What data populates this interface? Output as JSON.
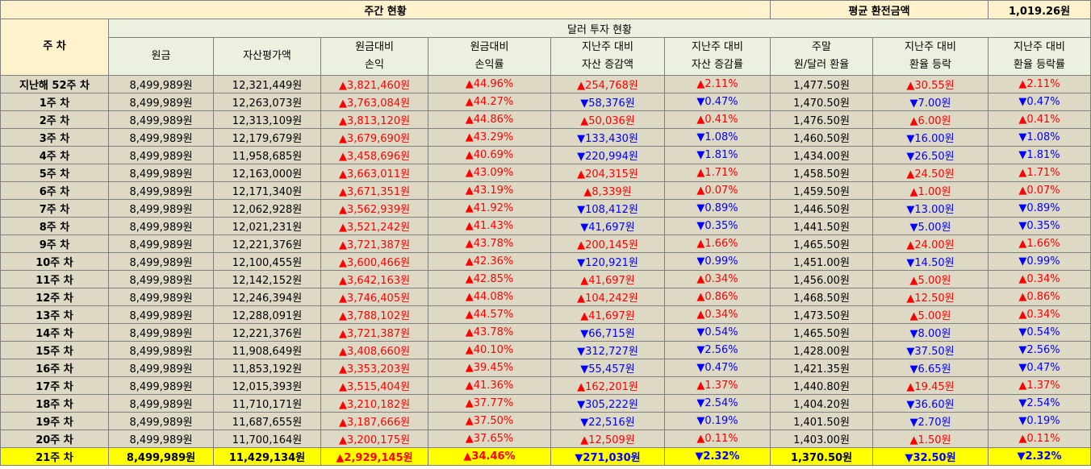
{
  "header": {
    "section_title": "주간 현황",
    "avg_label": "평균 환전금액",
    "avg_value": "1,019.26원",
    "week_col": "주 차",
    "subsection_title": "달러 투자 현황"
  },
  "columns": [
    {
      "l1": "원금",
      "l2": ""
    },
    {
      "l1": "자산평가액",
      "l2": ""
    },
    {
      "l1": "원금대비",
      "l2": "손익"
    },
    {
      "l1": "원금대비",
      "l2": "손익률"
    },
    {
      "l1": "지난주 대비",
      "l2": "자산 증감액"
    },
    {
      "l1": "지난주 대비",
      "l2": "자산 증감률"
    },
    {
      "l1": "주말",
      "l2": "원/달러 환율"
    },
    {
      "l1": "지난주 대비",
      "l2": "환율 등락"
    },
    {
      "l1": "지난주 대비",
      "l2": "환율 등락률"
    }
  ],
  "colors": {
    "up": "#ff0000",
    "down": "#0000ff",
    "highlight": "#ffff00",
    "header_bg": "#fff2cc",
    "row_bg": "#ddd9c4"
  },
  "rows": [
    {
      "week": "지난해 52주 차",
      "principal": "8,499,989원",
      "asset": "12,321,449원",
      "pl": "▲3,821,460원",
      "plr": "▲44.96%",
      "chg": "▲254,768원",
      "chgr": "▲2.11%",
      "fx": "1,477.50원",
      "fxchg": "▲30.55원",
      "fxr": "▲2.11%"
    },
    {
      "week": "1주 차",
      "principal": "8,499,989원",
      "asset": "12,263,073원",
      "pl": "▲3,763,084원",
      "plr": "▲44.27%",
      "chg": "▼58,376원",
      "chgr": "▼0.47%",
      "fx": "1,470.50원",
      "fxchg": "▼7.00원",
      "fxr": "▼0.47%"
    },
    {
      "week": "2주 차",
      "principal": "8,499,989원",
      "asset": "12,313,109원",
      "pl": "▲3,813,120원",
      "plr": "▲44.86%",
      "chg": "▲50,036원",
      "chgr": "▲0.41%",
      "fx": "1,476.50원",
      "fxchg": "▲6.00원",
      "fxr": "▲0.41%"
    },
    {
      "week": "3주 차",
      "principal": "8,499,989원",
      "asset": "12,179,679원",
      "pl": "▲3,679,690원",
      "plr": "▲43.29%",
      "chg": "▼133,430원",
      "chgr": "▼1.08%",
      "fx": "1,460.50원",
      "fxchg": "▼16.00원",
      "fxr": "▼1.08%"
    },
    {
      "week": "4주 차",
      "principal": "8,499,989원",
      "asset": "11,958,685원",
      "pl": "▲3,458,696원",
      "plr": "▲40.69%",
      "chg": "▼220,994원",
      "chgr": "▼1.81%",
      "fx": "1,434.00원",
      "fxchg": "▼26.50원",
      "fxr": "▼1.81%"
    },
    {
      "week": "5주 차",
      "principal": "8,499,989원",
      "asset": "12,163,000원",
      "pl": "▲3,663,011원",
      "plr": "▲43.09%",
      "chg": "▲204,315원",
      "chgr": "▲1.71%",
      "fx": "1,458.50원",
      "fxchg": "▲24.50원",
      "fxr": "▲1.71%"
    },
    {
      "week": "6주 차",
      "principal": "8,499,989원",
      "asset": "12,171,340원",
      "pl": "▲3,671,351원",
      "plr": "▲43.19%",
      "chg": "▲8,339원",
      "chgr": "▲0.07%",
      "fx": "1,459.50원",
      "fxchg": "▲1.00원",
      "fxr": "▲0.07%"
    },
    {
      "week": "7주 차",
      "principal": "8,499,989원",
      "asset": "12,062,928원",
      "pl": "▲3,562,939원",
      "plr": "▲41.92%",
      "chg": "▼108,412원",
      "chgr": "▼0.89%",
      "fx": "1,446.50원",
      "fxchg": "▼13.00원",
      "fxr": "▼0.89%"
    },
    {
      "week": "8주 차",
      "principal": "8,499,989원",
      "asset": "12,021,231원",
      "pl": "▲3,521,242원",
      "plr": "▲41.43%",
      "chg": "▼41,697원",
      "chgr": "▼0.35%",
      "fx": "1,441.50원",
      "fxchg": "▼5.00원",
      "fxr": "▼0.35%"
    },
    {
      "week": "9주 차",
      "principal": "8,499,989원",
      "asset": "12,221,376원",
      "pl": "▲3,721,387원",
      "plr": "▲43.78%",
      "chg": "▲200,145원",
      "chgr": "▲1.66%",
      "fx": "1,465.50원",
      "fxchg": "▲24.00원",
      "fxr": "▲1.66%"
    },
    {
      "week": "10주 차",
      "principal": "8,499,989원",
      "asset": "12,100,455원",
      "pl": "▲3,600,466원",
      "plr": "▲42.36%",
      "chg": "▼120,921원",
      "chgr": "▼0.99%",
      "fx": "1,451.00원",
      "fxchg": "▼14.50원",
      "fxr": "▼0.99%"
    },
    {
      "week": "11주 차",
      "principal": "8,499,989원",
      "asset": "12,142,152원",
      "pl": "▲3,642,163원",
      "plr": "▲42.85%",
      "chg": "▲41,697원",
      "chgr": "▲0.34%",
      "fx": "1,456.00원",
      "fxchg": "▲5.00원",
      "fxr": "▲0.34%"
    },
    {
      "week": "12주 차",
      "principal": "8,499,989원",
      "asset": "12,246,394원",
      "pl": "▲3,746,405원",
      "plr": "▲44.08%",
      "chg": "▲104,242원",
      "chgr": "▲0.86%",
      "fx": "1,468.50원",
      "fxchg": "▲12.50원",
      "fxr": "▲0.86%"
    },
    {
      "week": "13주 차",
      "principal": "8,499,989원",
      "asset": "12,288,091원",
      "pl": "▲3,788,102원",
      "plr": "▲44.57%",
      "chg": "▲41,697원",
      "chgr": "▲0.34%",
      "fx": "1,473.50원",
      "fxchg": "▲5.00원",
      "fxr": "▲0.34%"
    },
    {
      "week": "14주 차",
      "principal": "8,499,989원",
      "asset": "12,221,376원",
      "pl": "▲3,721,387원",
      "plr": "▲43.78%",
      "chg": "▼66,715원",
      "chgr": "▼0.54%",
      "fx": "1,465.50원",
      "fxchg": "▼8.00원",
      "fxr": "▼0.54%"
    },
    {
      "week": "15주 차",
      "principal": "8,499,989원",
      "asset": "11,908,649원",
      "pl": "▲3,408,660원",
      "plr": "▲40.10%",
      "chg": "▼312,727원",
      "chgr": "▼2.56%",
      "fx": "1,428.00원",
      "fxchg": "▼37.50원",
      "fxr": "▼2.56%"
    },
    {
      "week": "16주 차",
      "principal": "8,499,989원",
      "asset": "11,853,192원",
      "pl": "▲3,353,203원",
      "plr": "▲39.45%",
      "chg": "▼55,457원",
      "chgr": "▼0.47%",
      "fx": "1,421.35원",
      "fxchg": "▼6.65원",
      "fxr": "▼0.47%"
    },
    {
      "week": "17주 차",
      "principal": "8,499,989원",
      "asset": "12,015,393원",
      "pl": "▲3,515,404원",
      "plr": "▲41.36%",
      "chg": "▲162,201원",
      "chgr": "▲1.37%",
      "fx": "1,440.80원",
      "fxchg": "▲19.45원",
      "fxr": "▲1.37%"
    },
    {
      "week": "18주 차",
      "principal": "8,499,989원",
      "asset": "11,710,171원",
      "pl": "▲3,210,182원",
      "plr": "▲37.77%",
      "chg": "▼305,222원",
      "chgr": "▼2.54%",
      "fx": "1,404.20원",
      "fxchg": "▼36.60원",
      "fxr": "▼2.54%"
    },
    {
      "week": "19주 차",
      "principal": "8,499,989원",
      "asset": "11,687,655원",
      "pl": "▲3,187,666원",
      "plr": "▲37.50%",
      "chg": "▼22,516원",
      "chgr": "▼0.19%",
      "fx": "1,401.50원",
      "fxchg": "▼2.70원",
      "fxr": "▼0.19%"
    },
    {
      "week": "20주 차",
      "principal": "8,499,989원",
      "asset": "11,700,164원",
      "pl": "▲3,200,175원",
      "plr": "▲37.65%",
      "chg": "▲12,509원",
      "chgr": "▲0.11%",
      "fx": "1,403.00원",
      "fxchg": "▲1.50원",
      "fxr": "▲0.11%"
    },
    {
      "week": "21주 차",
      "principal": "8,499,989원",
      "asset": "11,429,134원",
      "pl": "▲2,929,145원",
      "plr": "▲34.46%",
      "chg": "▼271,030원",
      "chgr": "▼2.32%",
      "fx": "1,370.50원",
      "fxchg": "▼32.50원",
      "fxr": "▼2.32%",
      "current": true
    }
  ]
}
